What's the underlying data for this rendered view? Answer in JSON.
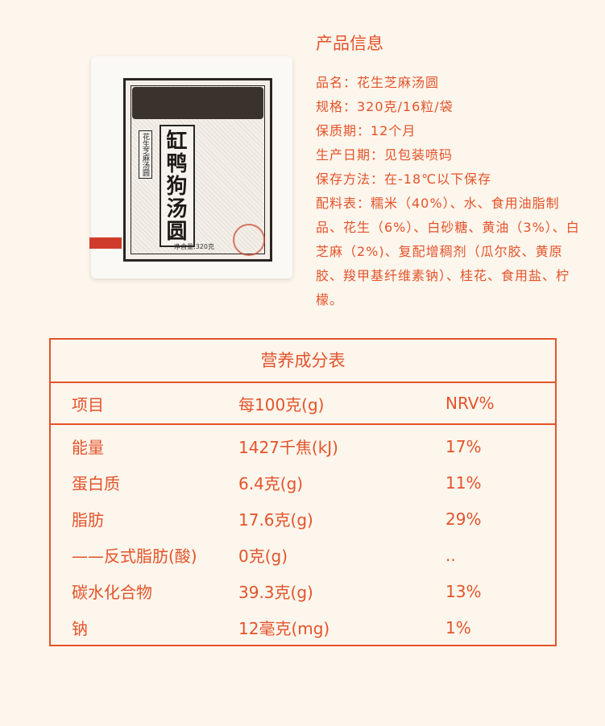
{
  "product_image": {
    "brand": "缸鸭狗汤圆",
    "subtitle": "花生芝麻汤圆",
    "net_weight": "净含量:320克"
  },
  "info": {
    "title": "产品信息",
    "lines": [
      "品名：花生芝麻汤圆",
      "规格：320克/16粒/袋",
      "保质期：12个月",
      "生产日期：见包装喷码",
      "保存方法：在-18℃以下保存",
      "配料表：糯米（40%）、水、食用油脂制品、花生（6%）、白砂糖、黄油（3%）、白芝麻（2%)、复配增稠剂（瓜尔胶、黄原胶、羧甲基纤维素钠）、桂花、食用盐、柠檬。"
    ]
  },
  "nutrition": {
    "title": "营养成分表",
    "headers": [
      "项目",
      "每100克(g)",
      "NRV%"
    ],
    "rows": [
      [
        "能量",
        "1427千焦(kJ)",
        "17%"
      ],
      [
        "蛋白质",
        "6.4克(g)",
        "11%"
      ],
      [
        "脂肪",
        "17.6克(g)",
        "29%"
      ],
      [
        "——反式脂肪(酸)",
        "0克(g)",
        ".."
      ],
      [
        "碳水化合物",
        "39.3克(g)",
        "13%"
      ],
      [
        "钠",
        "12毫克(mg)",
        "1%"
      ]
    ]
  },
  "colors": {
    "accent": "#e4532b",
    "background": "#fdf6ec"
  }
}
